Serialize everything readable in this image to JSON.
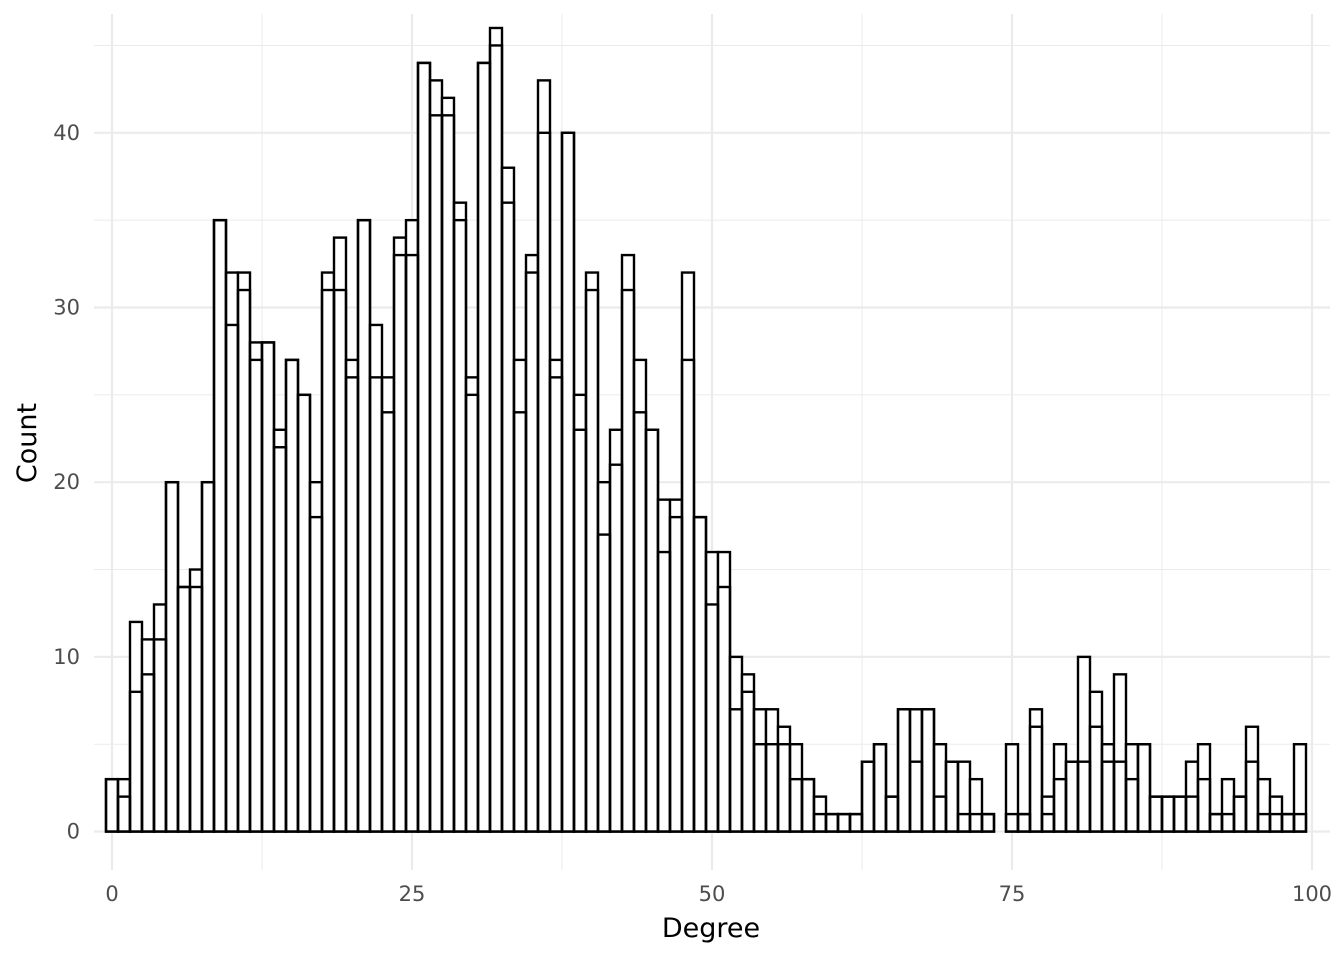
{
  "chart_data": {
    "type": "bar",
    "xlabel": "Degree",
    "ylabel": "Count",
    "xlim": [
      -1.5,
      101.5
    ],
    "ylim": [
      -2.2,
      46.8
    ],
    "xticks": [
      0,
      25,
      50,
      75,
      100
    ],
    "yticks": [
      0,
      10,
      20,
      30,
      40
    ],
    "grid": true,
    "bar_fill": "#ffffff",
    "bar_stroke": "#000000",
    "grid_color": "#ebebeb",
    "bin_width": 1,
    "bin_centers": [
      0,
      1,
      2,
      3,
      4,
      5,
      6,
      7,
      8,
      9,
      10,
      11,
      12,
      13,
      14,
      15,
      16,
      17,
      18,
      19,
      20,
      21,
      22,
      23,
      24,
      25,
      26,
      27,
      28,
      29,
      30,
      31,
      32,
      33,
      34,
      35,
      36,
      37,
      38,
      39,
      40,
      41,
      42,
      43,
      44,
      45,
      46,
      47,
      48,
      49,
      50,
      51,
      52,
      53,
      54,
      55,
      56,
      57,
      58,
      59,
      60,
      61,
      62,
      63,
      64,
      65,
      66,
      67,
      68,
      69,
      70,
      71,
      72,
      73,
      74,
      75,
      76,
      77,
      78,
      79,
      80,
      81,
      82,
      83,
      84,
      85,
      86,
      87,
      88,
      89,
      90,
      91,
      92,
      93,
      94,
      95,
      96,
      97,
      98,
      99
    ],
    "series": [
      {
        "values": [
          3,
          3,
          12,
          11,
          13,
          20,
          14,
          15,
          20,
          35,
          32,
          32,
          28,
          28,
          23,
          27,
          25,
          20,
          32,
          34,
          27,
          35,
          29,
          26,
          34,
          35,
          44,
          43,
          42,
          36,
          26,
          44,
          46,
          38,
          27,
          33,
          43,
          27,
          40,
          25,
          32,
          20,
          23,
          33,
          27,
          23,
          19,
          19,
          32,
          18,
          16,
          16,
          10,
          9,
          7,
          7,
          6,
          5,
          3,
          2,
          1,
          1,
          1,
          4,
          5,
          2,
          7,
          7,
          7,
          5,
          4,
          4,
          3,
          1,
          0,
          5,
          1,
          7,
          2,
          5,
          4,
          10,
          8,
          5,
          9,
          5,
          5,
          2,
          2,
          2,
          4,
          5,
          1,
          3,
          2,
          6,
          3,
          2,
          1,
          5
        ]
      },
      {
        "values": [
          3,
          2,
          8,
          9,
          11,
          20,
          14,
          14,
          20,
          35,
          29,
          31,
          27,
          28,
          22,
          27,
          25,
          18,
          31,
          31,
          26,
          35,
          26,
          24,
          33,
          33,
          44,
          41,
          41,
          35,
          25,
          44,
          45,
          36,
          24,
          32,
          40,
          26,
          40,
          23,
          31,
          17,
          21,
          31,
          24,
          23,
          16,
          18,
          27,
          18,
          13,
          14,
          7,
          8,
          5,
          5,
          5,
          3,
          3,
          1,
          1,
          1,
          1,
          4,
          5,
          2,
          7,
          4,
          7,
          2,
          4,
          1,
          1,
          1,
          0,
          1,
          1,
          6,
          1,
          3,
          4,
          4,
          6,
          4,
          4,
          3,
          5,
          2,
          2,
          2,
          2,
          3,
          1,
          1,
          2,
          4,
          1,
          1,
          1,
          1
        ]
      }
    ]
  }
}
